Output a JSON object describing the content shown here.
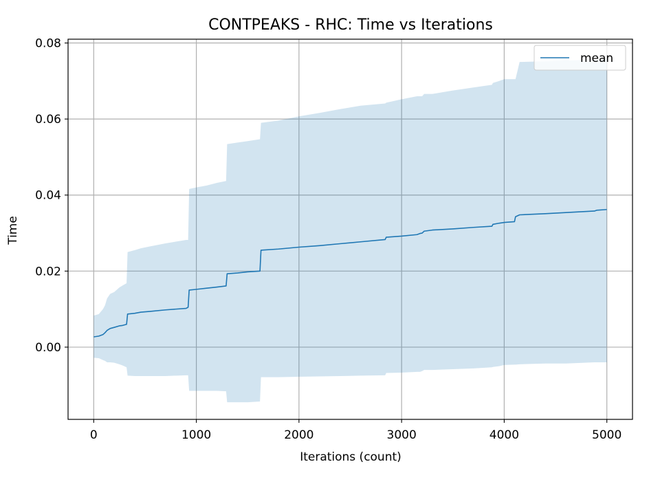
{
  "chart_data": {
    "type": "line",
    "title": "CONTPEAKS - RHC: Time vs Iterations",
    "xlabel": "Iterations (count)",
    "ylabel": "Time",
    "xlim": [
      -250,
      5250
    ],
    "ylim": [
      -0.019,
      0.081
    ],
    "xticks": [
      0,
      1000,
      2000,
      3000,
      4000,
      5000
    ],
    "xtick_labels": [
      "0",
      "1000",
      "2000",
      "3000",
      "4000",
      "5000"
    ],
    "yticks": [
      0.0,
      0.02,
      0.04,
      0.06,
      0.08
    ],
    "ytick_labels": [
      "0.00",
      "0.02",
      "0.04",
      "0.06",
      "0.08"
    ],
    "grid": true,
    "legend_position": "top-right",
    "colors": {
      "line": "#1f77b4",
      "band": "#1f77b4",
      "grid": "#b0b0b0"
    },
    "series": [
      {
        "name": "mean",
        "x": [
          0,
          50,
          90,
          110,
          130,
          160,
          200,
          250,
          280,
          320,
          330,
          400,
          460,
          550,
          700,
          900,
          920,
          930,
          1000,
          1100,
          1200,
          1290,
          1300,
          1400,
          1500,
          1620,
          1630,
          1800,
          2000,
          2200,
          2400,
          2600,
          2840,
          2850,
          3000,
          3150,
          3180,
          3200,
          3220,
          3300,
          3500,
          3700,
          3880,
          3890,
          3950,
          4000,
          4100,
          4110,
          4150,
          4400,
          4600,
          4880,
          4900,
          5000
        ],
        "values": [
          0.0027,
          0.0029,
          0.0033,
          0.0038,
          0.0044,
          0.0049,
          0.0052,
          0.0056,
          0.0057,
          0.006,
          0.0087,
          0.0089,
          0.0092,
          0.0094,
          0.0098,
          0.0102,
          0.0105,
          0.015,
          0.0152,
          0.0155,
          0.0158,
          0.0161,
          0.0193,
          0.0195,
          0.0198,
          0.02,
          0.0255,
          0.0258,
          0.0263,
          0.0267,
          0.0272,
          0.0277,
          0.0283,
          0.0289,
          0.0292,
          0.0296,
          0.0299,
          0.03,
          0.0305,
          0.0308,
          0.0311,
          0.0315,
          0.0318,
          0.0323,
          0.0326,
          0.0328,
          0.033,
          0.0343,
          0.0348,
          0.0351,
          0.0354,
          0.0358,
          0.036,
          0.0362
        ],
        "upper": [
          0.0083,
          0.0087,
          0.01,
          0.011,
          0.0128,
          0.014,
          0.0145,
          0.0157,
          0.0162,
          0.0168,
          0.025,
          0.0255,
          0.026,
          0.0265,
          0.0273,
          0.0282,
          0.0282,
          0.0416,
          0.042,
          0.0425,
          0.0432,
          0.0437,
          0.0534,
          0.0538,
          0.0542,
          0.0547,
          0.059,
          0.0596,
          0.0607,
          0.0616,
          0.0626,
          0.0635,
          0.0641,
          0.0643,
          0.0652,
          0.066,
          0.066,
          0.066,
          0.0666,
          0.0666,
          0.0675,
          0.0683,
          0.069,
          0.0695,
          0.07,
          0.0705,
          0.0705,
          0.0705,
          0.075,
          0.0752,
          0.0754,
          0.0756,
          0.0756,
          0.076
        ],
        "lower": [
          -0.0028,
          -0.0029,
          -0.0034,
          -0.0036,
          -0.004,
          -0.004,
          -0.0041,
          -0.0045,
          -0.0048,
          -0.0053,
          -0.0075,
          -0.0076,
          -0.0076,
          -0.0076,
          -0.0076,
          -0.0074,
          -0.0074,
          -0.0115,
          -0.0115,
          -0.0115,
          -0.0115,
          -0.0116,
          -0.0145,
          -0.0145,
          -0.0145,
          -0.0143,
          -0.0079,
          -0.0079,
          -0.0078,
          -0.0077,
          -0.0076,
          -0.0075,
          -0.0074,
          -0.0068,
          -0.0067,
          -0.0065,
          -0.0065,
          -0.0063,
          -0.006,
          -0.006,
          -0.0058,
          -0.0056,
          -0.0053,
          -0.0052,
          -0.005,
          -0.0047,
          -0.0046,
          -0.0046,
          -0.0045,
          -0.0043,
          -0.0043,
          -0.004,
          -0.004,
          -0.004
        ]
      }
    ]
  }
}
